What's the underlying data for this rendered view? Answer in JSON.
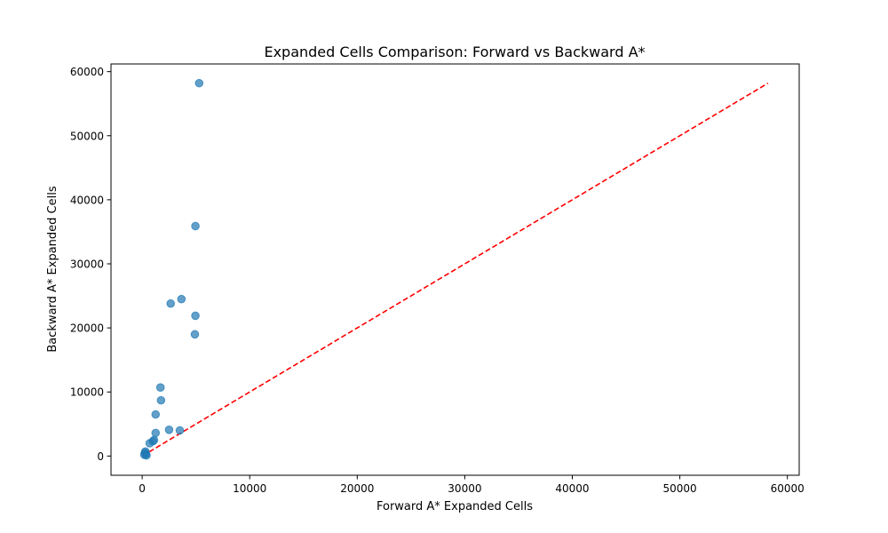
{
  "chart_data": {
    "type": "scatter",
    "title": "Expanded Cells Comparison: Forward vs Backward A*",
    "xlabel": "Forward A* Expanded Cells",
    "ylabel": "Backward A* Expanded Cells",
    "xlim": [
      -2900,
      61100
    ],
    "ylim": [
      -3000,
      61200
    ],
    "xticks": [
      0,
      10000,
      20000,
      30000,
      40000,
      50000,
      60000
    ],
    "yticks": [
      0,
      10000,
      20000,
      30000,
      40000,
      50000,
      60000
    ],
    "grid": false,
    "reference_line": {
      "from": [
        0,
        0
      ],
      "to": [
        58200,
        58200
      ],
      "color": "#ff0000",
      "style": "dashed"
    },
    "point_color": "#1f77b4",
    "points": [
      {
        "x": 5300,
        "y": 58200
      },
      {
        "x": 4950,
        "y": 35900
      },
      {
        "x": 3650,
        "y": 24500
      },
      {
        "x": 2650,
        "y": 23800
      },
      {
        "x": 4950,
        "y": 21900
      },
      {
        "x": 4900,
        "y": 19000
      },
      {
        "x": 1700,
        "y": 10700
      },
      {
        "x": 1750,
        "y": 8700
      },
      {
        "x": 1250,
        "y": 6500
      },
      {
        "x": 1250,
        "y": 3600
      },
      {
        "x": 2500,
        "y": 4100
      },
      {
        "x": 3500,
        "y": 4000
      },
      {
        "x": 1100,
        "y": 2500
      },
      {
        "x": 1000,
        "y": 2300
      },
      {
        "x": 700,
        "y": 2000
      },
      {
        "x": 300,
        "y": 700
      },
      {
        "x": 250,
        "y": 500
      },
      {
        "x": 350,
        "y": 300
      },
      {
        "x": 200,
        "y": 200
      },
      {
        "x": 400,
        "y": 100
      }
    ]
  }
}
